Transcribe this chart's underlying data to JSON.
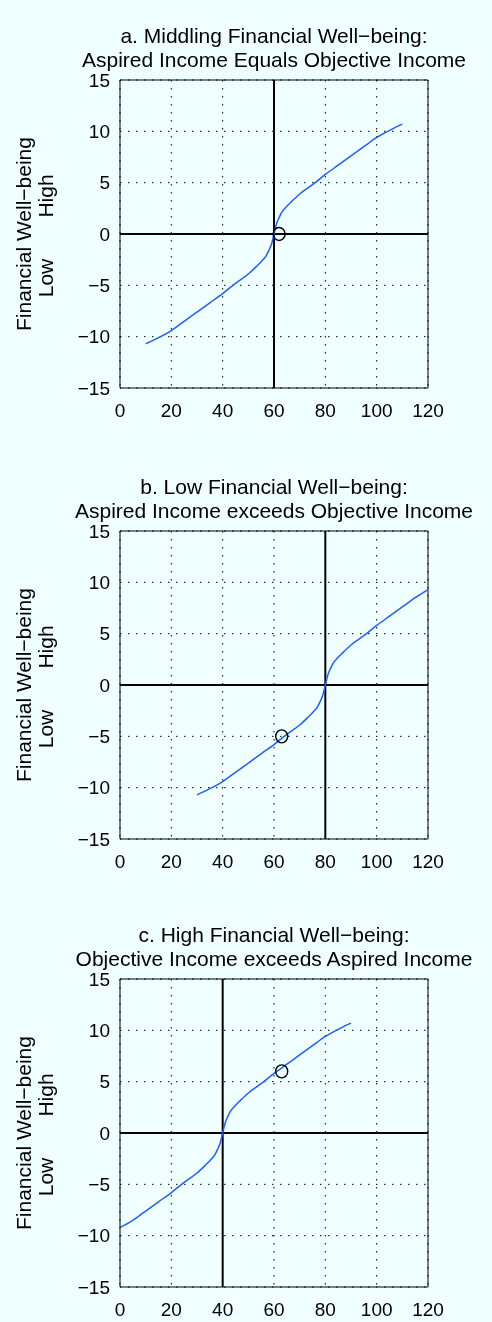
{
  "chart_data": [
    {
      "type": "line",
      "title": "a. Middling Financial Well−being:",
      "subtitle": "Aspired Income Equals Objective Income",
      "ylabel": "Financial Well−being",
      "annotations": [
        "Low",
        "High"
      ],
      "xlim": [
        0,
        120
      ],
      "xticks": [
        0,
        20,
        40,
        60,
        80,
        100,
        120
      ],
      "ylim": [
        -15,
        15
      ],
      "yticks": [
        {
          "value": -15,
          "label": "−15"
        },
        {
          "value": -10,
          "label": "−10"
        },
        {
          "value": -5,
          "label": "−5"
        },
        0,
        5,
        10,
        15
      ],
      "grid": true,
      "ref_lines": [
        {
          "axis": "x",
          "value": 60,
          "color": "#000000"
        },
        {
          "axis": "y",
          "value": 0,
          "color": "#000000"
        }
      ],
      "series": [
        {
          "type": "line",
          "color": "#1f5fff",
          "x": [
            10,
            15,
            20,
            25,
            30,
            35,
            40,
            45,
            50,
            53,
            55,
            57,
            58,
            59,
            60,
            61,
            62,
            63,
            65,
            67,
            70,
            75,
            80,
            85,
            90,
            95,
            100,
            105,
            110
          ],
          "values": [
            -10.7,
            -10.1,
            -9.4,
            -8.5,
            -7.6,
            -6.7,
            -5.8,
            -4.8,
            -3.9,
            -3.2,
            -2.7,
            -2.1,
            -1.6,
            -1.0,
            0,
            1.0,
            1.6,
            2.1,
            2.7,
            3.2,
            3.9,
            4.8,
            5.8,
            6.7,
            7.6,
            8.5,
            9.4,
            10.1,
            10.7
          ]
        },
        {
          "type": "scatter",
          "color": "#000000",
          "marker": "circle",
          "x": [
            62
          ],
          "values": [
            0
          ]
        }
      ]
    },
    {
      "type": "line",
      "title": "b. Low Financial Well−being:",
      "subtitle": "Aspired Income exceeds Objective Income",
      "ylabel": "Financial Well−being",
      "annotations": [
        "Low",
        "High"
      ],
      "xlim": [
        0,
        120
      ],
      "xticks": [
        0,
        20,
        40,
        60,
        80,
        100,
        120
      ],
      "ylim": [
        -15,
        15
      ],
      "yticks": [
        {
          "value": -15,
          "label": "−15"
        },
        {
          "value": -10,
          "label": "−10"
        },
        {
          "value": -5,
          "label": "−5"
        },
        0,
        5,
        10,
        15
      ],
      "grid": true,
      "ref_lines": [
        {
          "axis": "x",
          "value": 80,
          "color": "#000000"
        },
        {
          "axis": "y",
          "value": 0,
          "color": "#000000"
        }
      ],
      "series": [
        {
          "type": "line",
          "color": "#1f5fff",
          "x": [
            30,
            35,
            40,
            45,
            50,
            55,
            60,
            65,
            70,
            73,
            75,
            77,
            78,
            79,
            80,
            81,
            82,
            83,
            85,
            87,
            90,
            95,
            100,
            105,
            110,
            115,
            120
          ],
          "values": [
            -10.7,
            -10.1,
            -9.4,
            -8.5,
            -7.6,
            -6.7,
            -5.8,
            -4.8,
            -3.9,
            -3.2,
            -2.7,
            -2.1,
            -1.6,
            -1.0,
            0,
            1.0,
            1.6,
            2.1,
            2.7,
            3.2,
            3.9,
            4.8,
            5.8,
            6.7,
            7.6,
            8.5,
            9.3
          ]
        },
        {
          "type": "scatter",
          "color": "#000000",
          "marker": "circle",
          "x": [
            63
          ],
          "values": [
            -5
          ]
        }
      ]
    },
    {
      "type": "line",
      "title": "c. High Financial Well−being:",
      "subtitle": "Objective Income exceeds Aspired Income",
      "ylabel": "Financial Well−being",
      "annotations": [
        "Low",
        "High"
      ],
      "xlim": [
        0,
        120
      ],
      "xticks": [
        0,
        20,
        40,
        60,
        80,
        100,
        120
      ],
      "ylim": [
        -15,
        15
      ],
      "yticks": [
        {
          "value": -15,
          "label": "−15"
        },
        {
          "value": -10,
          "label": "−10"
        },
        {
          "value": -5,
          "label": "−5"
        },
        0,
        5,
        10,
        15
      ],
      "grid": true,
      "ref_lines": [
        {
          "axis": "x",
          "value": 40,
          "color": "#000000"
        },
        {
          "axis": "y",
          "value": 0,
          "color": "#000000"
        }
      ],
      "series": [
        {
          "type": "line",
          "color": "#1f5fff",
          "x": [
            0,
            5,
            10,
            15,
            20,
            25,
            30,
            33,
            35,
            37,
            38,
            39,
            40,
            41,
            42,
            43,
            45,
            47,
            50,
            55,
            60,
            65,
            70,
            75,
            80,
            85,
            90
          ],
          "values": [
            -9.2,
            -8.5,
            -7.6,
            -6.7,
            -5.8,
            -4.8,
            -3.9,
            -3.2,
            -2.7,
            -2.1,
            -1.6,
            -1.0,
            0,
            1.0,
            1.6,
            2.1,
            2.7,
            3.2,
            3.9,
            4.8,
            5.8,
            6.7,
            7.6,
            8.5,
            9.4,
            10.1,
            10.7
          ]
        },
        {
          "type": "scatter",
          "color": "#000000",
          "marker": "circle",
          "x": [
            63
          ],
          "values": [
            6
          ]
        }
      ]
    }
  ]
}
